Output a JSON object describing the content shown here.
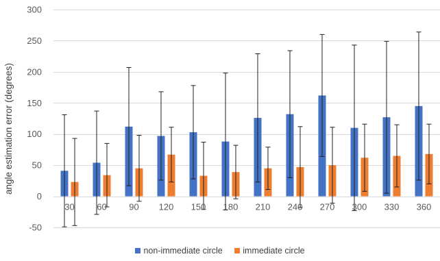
{
  "chart_data": {
    "type": "bar",
    "title": "",
    "xlabel": "",
    "ylabel": "angle estimation error (degrees)",
    "ylim": [
      -50,
      300
    ],
    "yticks": [
      -50,
      0,
      50,
      100,
      150,
      200,
      250,
      300
    ],
    "grid": true,
    "legend_position": "bottom",
    "categories": [
      "30",
      "60",
      "90",
      "120",
      "150",
      "180",
      "210",
      "240",
      "270",
      "300",
      "330",
      "360"
    ],
    "series": [
      {
        "name": "non-immediate circle",
        "color": "#4472c4",
        "values": [
          41,
          54,
          112,
          97,
          103,
          88,
          126,
          132,
          162,
          110,
          127,
          145
        ],
        "error_high": [
          131,
          137,
          207,
          168,
          178,
          198,
          229,
          234,
          260,
          243,
          249,
          264
        ],
        "error_low": [
          -49,
          -29,
          17,
          26,
          28,
          -22,
          23,
          30,
          64,
          -23,
          5,
          26
        ]
      },
      {
        "name": "immediate circle",
        "color": "#ed7d31",
        "values": [
          23,
          34,
          45,
          67,
          33,
          39,
          45,
          47,
          50,
          62,
          65,
          68
        ],
        "error_high": [
          93,
          85,
          98,
          111,
          87,
          82,
          79,
          112,
          111,
          116,
          115,
          116
        ],
        "error_low": [
          -47,
          -17,
          -8,
          23,
          -21,
          -4,
          11,
          -18,
          -11,
          8,
          15,
          20
        ]
      }
    ]
  }
}
